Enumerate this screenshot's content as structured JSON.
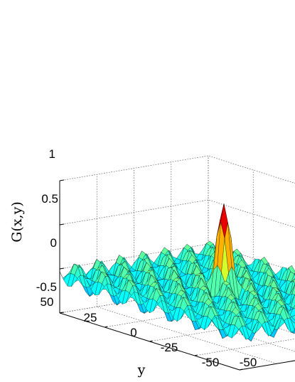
{
  "chart_data": {
    "type": "surface",
    "zlabel": "G(x,y)",
    "ylabel": "y",
    "xlabel": "",
    "z_ticks": [
      "-0.5",
      "0",
      "0.5",
      "1"
    ],
    "y_ticks": [
      "50",
      "25",
      "0",
      "-25",
      "-50"
    ],
    "x_ticks": [
      "-50"
    ],
    "xlim": [
      -50,
      50
    ],
    "ylim": [
      -50,
      50
    ],
    "zlim": [
      -0.5,
      1
    ],
    "grid": true,
    "colormap": "jet",
    "peak": {
      "x": 0,
      "y": 0,
      "z": 1
    }
  }
}
